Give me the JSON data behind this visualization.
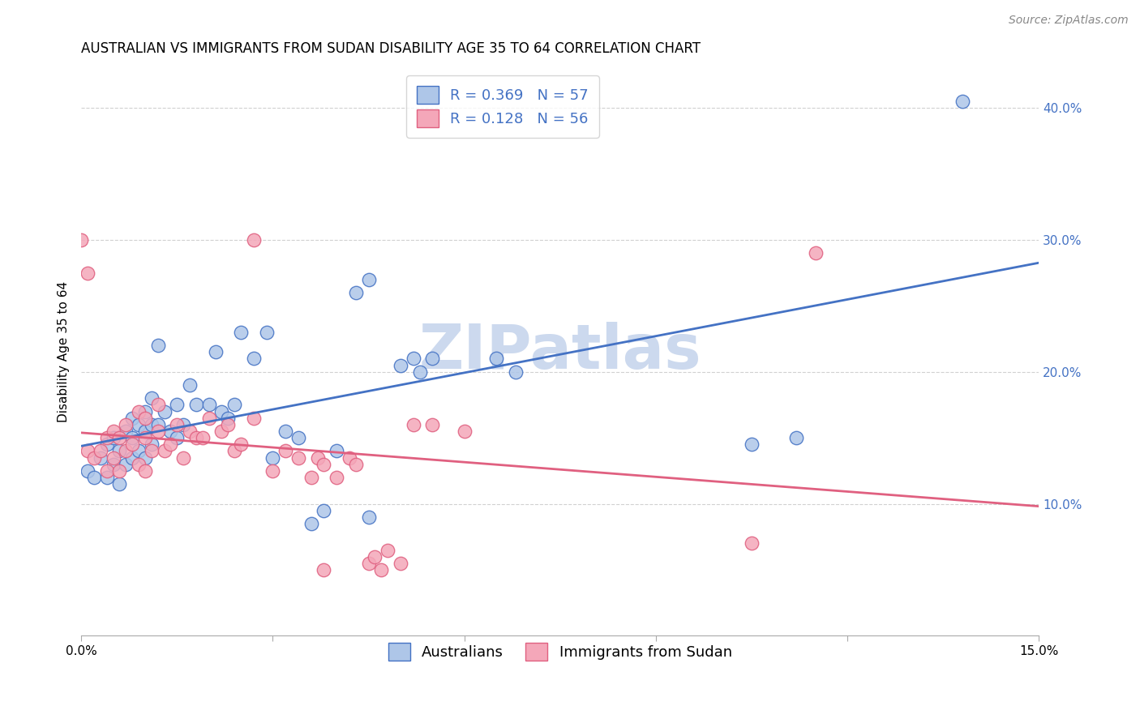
{
  "title": "AUSTRALIAN VS IMMIGRANTS FROM SUDAN DISABILITY AGE 35 TO 64 CORRELATION CHART",
  "source": "Source: ZipAtlas.com",
  "ylabel": "Disability Age 35 to 64",
  "legend_entries": [
    {
      "label": "Australians",
      "color": "#aec6e8",
      "R": 0.369,
      "N": 57
    },
    {
      "label": "Immigrants from Sudan",
      "color": "#f4a7b9",
      "R": 0.128,
      "N": 56
    }
  ],
  "watermark": "ZIPatlas",
  "watermark_color": "#ccd9ee",
  "background_color": "#ffffff",
  "grid_color": "#cccccc",
  "xlim": [
    0.0,
    15.0
  ],
  "ylim": [
    0.0,
    43.0
  ],
  "yticks": [
    10.0,
    20.0,
    30.0,
    40.0
  ],
  "xticks_show": [
    0.0,
    15.0
  ],
  "xticks_minor": [
    3.0,
    6.0,
    9.0,
    12.0
  ],
  "blue_scatter": [
    [
      0.1,
      12.5
    ],
    [
      0.2,
      12.0
    ],
    [
      0.3,
      13.5
    ],
    [
      0.4,
      12.0
    ],
    [
      0.4,
      14.5
    ],
    [
      0.5,
      13.0
    ],
    [
      0.5,
      15.0
    ],
    [
      0.6,
      11.5
    ],
    [
      0.6,
      14.0
    ],
    [
      0.7,
      13.0
    ],
    [
      0.7,
      15.5
    ],
    [
      0.8,
      13.5
    ],
    [
      0.8,
      15.0
    ],
    [
      0.8,
      16.5
    ],
    [
      0.9,
      14.0
    ],
    [
      0.9,
      16.0
    ],
    [
      1.0,
      13.5
    ],
    [
      1.0,
      15.5
    ],
    [
      1.0,
      17.0
    ],
    [
      1.1,
      14.5
    ],
    [
      1.1,
      16.0
    ],
    [
      1.1,
      18.0
    ],
    [
      1.2,
      16.0
    ],
    [
      1.2,
      22.0
    ],
    [
      1.3,
      17.0
    ],
    [
      1.4,
      15.5
    ],
    [
      1.5,
      15.0
    ],
    [
      1.5,
      17.5
    ],
    [
      1.6,
      16.0
    ],
    [
      1.7,
      19.0
    ],
    [
      1.8,
      17.5
    ],
    [
      2.0,
      17.5
    ],
    [
      2.1,
      21.5
    ],
    [
      2.2,
      17.0
    ],
    [
      2.3,
      16.5
    ],
    [
      2.4,
      17.5
    ],
    [
      2.5,
      23.0
    ],
    [
      2.7,
      21.0
    ],
    [
      2.9,
      23.0
    ],
    [
      3.0,
      13.5
    ],
    [
      3.2,
      15.5
    ],
    [
      3.4,
      15.0
    ],
    [
      3.6,
      8.5
    ],
    [
      4.0,
      14.0
    ],
    [
      4.3,
      26.0
    ],
    [
      4.5,
      27.0
    ],
    [
      5.0,
      20.5
    ],
    [
      5.2,
      21.0
    ],
    [
      5.3,
      20.0
    ],
    [
      5.5,
      21.0
    ],
    [
      6.5,
      21.0
    ],
    [
      6.8,
      20.0
    ],
    [
      3.8,
      9.5
    ],
    [
      10.5,
      14.5
    ],
    [
      11.2,
      15.0
    ],
    [
      13.8,
      40.5
    ],
    [
      4.5,
      9.0
    ]
  ],
  "pink_scatter": [
    [
      0.1,
      14.0
    ],
    [
      0.2,
      13.5
    ],
    [
      0.3,
      14.0
    ],
    [
      0.4,
      12.5
    ],
    [
      0.4,
      15.0
    ],
    [
      0.5,
      13.5
    ],
    [
      0.5,
      15.5
    ],
    [
      0.6,
      12.5
    ],
    [
      0.6,
      15.0
    ],
    [
      0.7,
      14.0
    ],
    [
      0.7,
      16.0
    ],
    [
      0.8,
      14.5
    ],
    [
      0.9,
      13.0
    ],
    [
      0.9,
      17.0
    ],
    [
      1.0,
      12.5
    ],
    [
      1.0,
      15.0
    ],
    [
      1.0,
      16.5
    ],
    [
      1.1,
      14.0
    ],
    [
      1.2,
      15.5
    ],
    [
      1.2,
      17.5
    ],
    [
      1.3,
      14.0
    ],
    [
      1.4,
      14.5
    ],
    [
      1.5,
      16.0
    ],
    [
      1.6,
      13.5
    ],
    [
      1.7,
      15.5
    ],
    [
      1.8,
      15.0
    ],
    [
      1.9,
      15.0
    ],
    [
      2.0,
      16.5
    ],
    [
      2.2,
      15.5
    ],
    [
      2.3,
      16.0
    ],
    [
      2.4,
      14.0
    ],
    [
      2.5,
      14.5
    ],
    [
      2.7,
      16.5
    ],
    [
      3.0,
      12.5
    ],
    [
      3.2,
      14.0
    ],
    [
      3.4,
      13.5
    ],
    [
      3.6,
      12.0
    ],
    [
      3.7,
      13.5
    ],
    [
      3.8,
      13.0
    ],
    [
      4.0,
      12.0
    ],
    [
      4.2,
      13.5
    ],
    [
      4.3,
      13.0
    ],
    [
      4.5,
      5.5
    ],
    [
      4.6,
      6.0
    ],
    [
      4.7,
      5.0
    ],
    [
      4.8,
      6.5
    ],
    [
      5.0,
      5.5
    ],
    [
      5.2,
      16.0
    ],
    [
      5.5,
      16.0
    ],
    [
      6.0,
      15.5
    ],
    [
      0.0,
      30.0
    ],
    [
      0.1,
      27.5
    ],
    [
      2.7,
      30.0
    ],
    [
      10.5,
      7.0
    ],
    [
      11.5,
      29.0
    ],
    [
      3.8,
      5.0
    ]
  ],
  "blue_line_color": "#4472c4",
  "pink_line_color": "#e06080",
  "title_fontsize": 12,
  "axis_label_fontsize": 11,
  "tick_fontsize": 11,
  "legend_fontsize": 13,
  "source_fontsize": 10
}
